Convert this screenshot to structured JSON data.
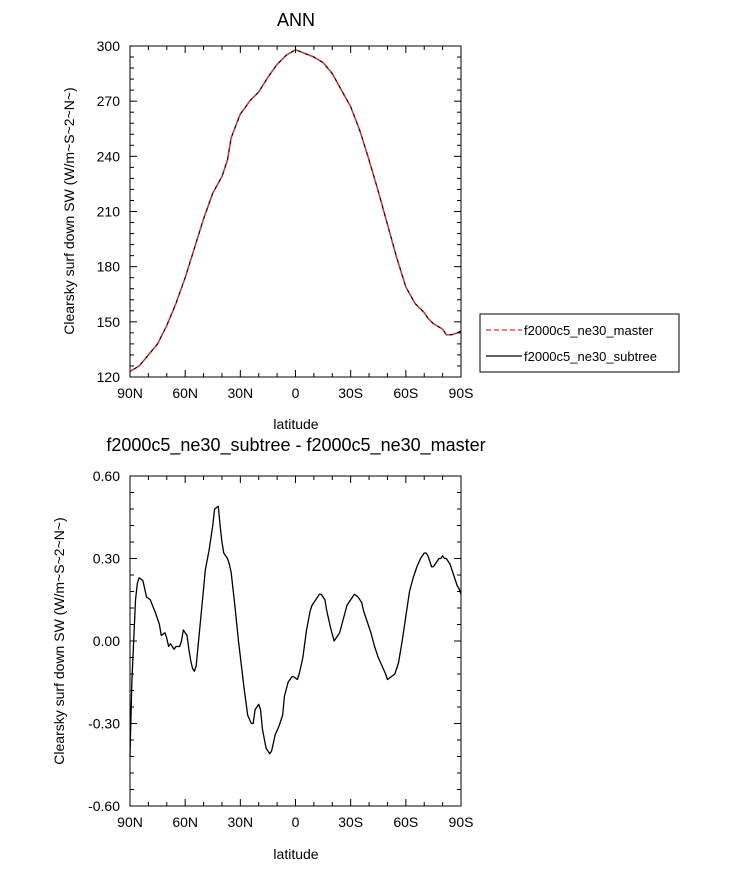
{
  "chart_data": [
    {
      "type": "line",
      "title": "ANN",
      "xlabel": "latitude",
      "ylabel": "Clearsky surf down SW (W/m~S~2~N~)",
      "xlim": [
        -90,
        90
      ],
      "ylim": [
        120,
        300
      ],
      "xticks": [
        -90,
        -60,
        -30,
        0,
        30,
        60,
        90
      ],
      "xtick_labels": [
        "90N",
        "60N",
        "30N",
        "0",
        "30S",
        "60S",
        "90S"
      ],
      "yticks": [
        120,
        150,
        180,
        210,
        240,
        270,
        300
      ],
      "ytick_labels": [
        "120",
        "150",
        "180",
        "210",
        "240",
        "270",
        "300"
      ],
      "x": [
        -90,
        -85,
        -80,
        -75,
        -70,
        -65,
        -60,
        -55,
        -50,
        -45,
        -40,
        -37,
        -35,
        -32,
        -30,
        -27,
        -25,
        -20,
        -15,
        -10,
        -5,
        0,
        5,
        10,
        15,
        20,
        25,
        30,
        35,
        40,
        45,
        50,
        55,
        60,
        65,
        70,
        72,
        75,
        80,
        82,
        85,
        88,
        90
      ],
      "series": [
        {
          "name": "f2000c5_ne30_master",
          "color": "#e3302f",
          "dash": "dashed",
          "values": [
            123,
            126,
            132,
            138,
            148,
            160,
            174,
            190,
            206,
            220,
            229,
            238,
            250,
            258,
            263,
            267,
            270,
            275,
            283,
            290,
            295,
            298,
            296,
            294,
            291,
            285,
            276,
            267,
            254,
            238,
            221,
            203,
            185,
            169,
            160,
            155,
            152,
            149,
            146,
            143,
            143,
            144,
            145
          ]
        },
        {
          "name": "f2000c5_ne30_subtree",
          "color": "#000000",
          "dash": "solid",
          "values": [
            123,
            126,
            132,
            138,
            148,
            160,
            174,
            190,
            206,
            220,
            229,
            238,
            250,
            258,
            263,
            267,
            270,
            275,
            283,
            290,
            295,
            298,
            296,
            294,
            291,
            285,
            276,
            267,
            254,
            238,
            221,
            203,
            185,
            169,
            160,
            155,
            152,
            149,
            146,
            143,
            143,
            144,
            145
          ]
        }
      ],
      "legend": {
        "entries": [
          "f2000c5_ne30_master",
          "f2000c5_ne30_subtree"
        ],
        "placement": "right"
      }
    },
    {
      "type": "line",
      "title": "f2000c5_ne30_subtree - f2000c5_ne30_master",
      "xlabel": "latitude",
      "ylabel": "Clearsky surf down SW (W/m~S~2~N~)",
      "xlim": [
        -90,
        90
      ],
      "ylim": [
        -0.6,
        0.6
      ],
      "xticks": [
        -90,
        -60,
        -30,
        0,
        30,
        60,
        90
      ],
      "xtick_labels": [
        "90N",
        "60N",
        "30N",
        "0",
        "30S",
        "60S",
        "90S"
      ],
      "yticks": [
        -0.6,
        -0.3,
        0.0,
        0.3,
        0.6
      ],
      "ytick_labels": [
        "-0.60",
        "-0.30",
        "0.00",
        "0.30",
        "0.60"
      ],
      "x": [
        -90,
        -89,
        -87,
        -86,
        -85,
        -83,
        -82,
        -81,
        -79,
        -76,
        -74,
        -73,
        -71,
        -70,
        -69,
        -68,
        -66,
        -65,
        -63,
        -62,
        -61,
        -59,
        -58,
        -57,
        -56,
        -55,
        -54,
        -52,
        -49,
        -47,
        -45,
        -44,
        -42,
        -41,
        -40,
        -39,
        -38,
        -37,
        -36,
        -35,
        -33,
        -31,
        -28,
        -26,
        -24,
        -23,
        -22,
        -20,
        -19,
        -18,
        -16,
        -14,
        -13,
        -11,
        -9,
        -7,
        -6,
        -4,
        -2,
        -1,
        1,
        2,
        4,
        6,
        8,
        9,
        11,
        13,
        14,
        16,
        17,
        19,
        21,
        22,
        23,
        24,
        26,
        28,
        30,
        32,
        34,
        36,
        37,
        39,
        41,
        43,
        45,
        47,
        49,
        50,
        52,
        54,
        56,
        58,
        60,
        62,
        64,
        66,
        68,
        70,
        71,
        72,
        73,
        74,
        75,
        76,
        77,
        78,
        79,
        80,
        81,
        82,
        83,
        84,
        85,
        86,
        87,
        88,
        89,
        90
      ],
      "series": [
        {
          "name": "f2000c5_ne30_subtree",
          "color": "#000000",
          "dash": "solid",
          "values": [
            -0.42,
            -0.15,
            0.15,
            0.21,
            0.23,
            0.22,
            0.19,
            0.16,
            0.15,
            0.1,
            0.06,
            0.02,
            0.03,
            0.01,
            -0.02,
            -0.01,
            -0.03,
            -0.02,
            -0.02,
            0.0,
            0.04,
            0.02,
            -0.03,
            -0.07,
            -0.1,
            -0.11,
            -0.09,
            0.05,
            0.26,
            0.33,
            0.42,
            0.48,
            0.49,
            0.42,
            0.36,
            0.32,
            0.31,
            0.3,
            0.28,
            0.25,
            0.13,
            0.0,
            -0.17,
            -0.27,
            -0.3,
            -0.3,
            -0.25,
            -0.23,
            -0.25,
            -0.32,
            -0.39,
            -0.41,
            -0.4,
            -0.34,
            -0.31,
            -0.27,
            -0.2,
            -0.15,
            -0.13,
            -0.13,
            -0.14,
            -0.12,
            -0.06,
            0.04,
            0.11,
            0.13,
            0.15,
            0.17,
            0.17,
            0.15,
            0.11,
            0.05,
            0.0,
            0.01,
            0.02,
            0.03,
            0.08,
            0.13,
            0.15,
            0.17,
            0.16,
            0.14,
            0.11,
            0.07,
            0.03,
            -0.02,
            -0.06,
            -0.09,
            -0.12,
            -0.14,
            -0.13,
            -0.12,
            -0.08,
            0.0,
            0.09,
            0.18,
            0.23,
            0.27,
            0.3,
            0.32,
            0.32,
            0.31,
            0.29,
            0.27,
            0.27,
            0.28,
            0.29,
            0.3,
            0.3,
            0.31,
            0.3,
            0.3,
            0.29,
            0.28,
            0.26,
            0.24,
            0.22,
            0.2,
            0.19,
            0.17
          ]
        }
      ]
    }
  ]
}
